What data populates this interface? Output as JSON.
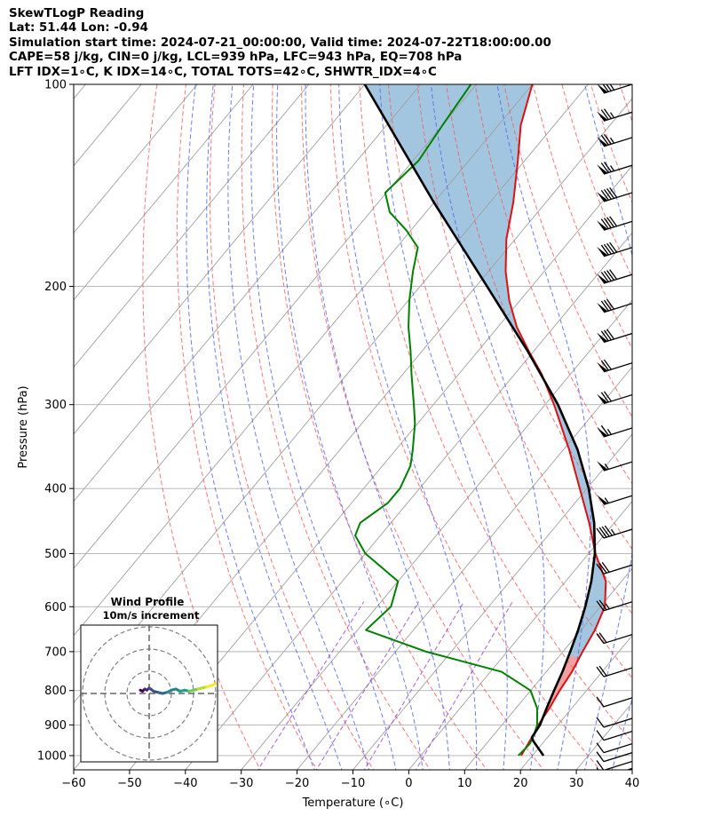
{
  "header": {
    "title": "SkewTLogP Reading",
    "location": "Lat: 51.44   Lon: -0.94",
    "times": "Simulation start time: 2024-07-21_00:00:00, Valid time: 2024-07-22T18:00:00.00",
    "indices1": "CAPE=58 j/kg, CIN=0 j/kg, LCL=939 hPa, LFC=943 hPa, EQ=708 hPa",
    "indices2": "LFT IDX=1∘C, K IDX=14∘C, TOTAL TOTS=42∘C, SHWTR_IDX=4∘C"
  },
  "chart_data": {
    "type": "line",
    "xlabel": "Temperature (∘C)",
    "ylabel": "Pressure (hPa)",
    "xlim": [
      -60,
      40
    ],
    "ylim": [
      1050,
      100
    ],
    "yscale": "log",
    "skew_deg_per_decade": 100,
    "xticks": [
      -60,
      -50,
      -40,
      -30,
      -20,
      -10,
      0,
      10,
      20,
      30,
      40
    ],
    "xtick_labels": [
      "−60",
      "−50",
      "−40",
      "−30",
      "−20",
      "−10",
      "0",
      "10",
      "20",
      "30",
      "40"
    ],
    "yticks": [
      100,
      200,
      300,
      400,
      500,
      600,
      700,
      800,
      900,
      1000
    ],
    "ytick_labels": [
      "100",
      "200",
      "300",
      "400",
      "500",
      "600",
      "700",
      "800",
      "900",
      "1000"
    ],
    "grid": true,
    "colors": {
      "temperature": "#dd1111",
      "dewpoint": "#008000",
      "parcel": "#000000",
      "cape_fill": "#a3c6e0",
      "dry_adiabats": "#f06060",
      "moist_adiabats": "#5566ee",
      "mixing_ratio": "#9944cc",
      "isotherms": "#a0a0a0"
    },
    "series": [
      {
        "key": "temperature",
        "p": [
          1000,
          925,
          900,
          850,
          800,
          750,
          700,
          650,
          600,
          550,
          500,
          450,
          400,
          350,
          300,
          270,
          250,
          230,
          210,
          190,
          170,
          150,
          130,
          115,
          100
        ],
        "t": [
          18,
          17,
          16.5,
          16,
          15.2,
          14.6,
          13.5,
          12.5,
          10.8,
          7.2,
          1.2,
          -4.5,
          -11.3,
          -19,
          -28.4,
          -35.2,
          -40.8,
          -46.6,
          -51.9,
          -56.9,
          -61.6,
          -65.8,
          -71.2,
          -76,
          -80
        ]
      },
      {
        "key": "dewpoint",
        "p": [
          1000,
          960,
          925,
          900,
          850,
          800,
          750,
          700,
          650,
          600,
          550,
          500,
          470,
          450,
          420,
          400,
          370,
          350,
          320,
          300,
          270,
          250,
          230,
          210,
          190,
          175,
          165,
          155,
          145,
          130,
          115,
          100
        ],
        "t": [
          17.5,
          17.8,
          17,
          16.3,
          13.8,
          10,
          2,
          -14.5,
          -28.5,
          -27.5,
          -30,
          -40,
          -44.5,
          -45.5,
          -43.5,
          -43.5,
          -45,
          -47,
          -50.5,
          -53.5,
          -58.5,
          -62,
          -66,
          -69.8,
          -73.5,
          -76.2,
          -80.8,
          -86.5,
          -90.2,
          -89,
          -90,
          -91
        ]
      },
      {
        "key": "parcel",
        "p": [
          1000,
          950,
          939,
          900,
          850,
          800,
          750,
          700,
          650,
          600,
          550,
          500,
          450,
          400,
          350,
          300,
          250,
          200,
          150,
          100
        ],
        "t": [
          22,
          17.9,
          17.2,
          16.8,
          15.5,
          14.2,
          12.9,
          11.3,
          9.5,
          7.3,
          4.6,
          1.1,
          -3.6,
          -9.7,
          -17.5,
          -27.7,
          -41,
          -58,
          -80,
          -110
        ]
      }
    ],
    "wind_barbs": [
      {
        "p": 100,
        "kt": 75
      },
      {
        "p": 110,
        "kt": 75
      },
      {
        "p": 120,
        "kt": 75
      },
      {
        "p": 132,
        "kt": 75
      },
      {
        "p": 145,
        "kt": 90
      },
      {
        "p": 160,
        "kt": 90
      },
      {
        "p": 175,
        "kt": 90
      },
      {
        "p": 192,
        "kt": 90
      },
      {
        "p": 212,
        "kt": 80
      },
      {
        "p": 235,
        "kt": 80
      },
      {
        "p": 260,
        "kt": 70
      },
      {
        "p": 290,
        "kt": 70
      },
      {
        "p": 325,
        "kt": 65
      },
      {
        "p": 365,
        "kt": 55
      },
      {
        "p": 410,
        "kt": 55
      },
      {
        "p": 460,
        "kt": 45
      },
      {
        "p": 520,
        "kt": 30
      },
      {
        "p": 590,
        "kt": 25
      },
      {
        "p": 660,
        "kt": 20
      },
      {
        "p": 740,
        "kt": 20
      },
      {
        "p": 820,
        "kt": 10
      },
      {
        "p": 880,
        "kt": 10
      },
      {
        "p": 920,
        "kt": 10
      },
      {
        "p": 960,
        "kt": 10
      },
      {
        "p": 990,
        "kt": 10
      },
      {
        "p": 1020,
        "kt": 10
      },
      {
        "p": 1045,
        "kt": 10
      }
    ],
    "hodograph": {
      "title": "Wind Profile",
      "subtitle": "10m/s increment",
      "ring_step_ms": 10,
      "ring_count": 3,
      "u": [
        -4,
        -3,
        -2,
        -1,
        0,
        2,
        4,
        6,
        8,
        10,
        12,
        14,
        16,
        18,
        20,
        22,
        24,
        26,
        28,
        30
      ],
      "v": [
        1.5,
        1,
        2,
        1.5,
        2.5,
        1,
        0.5,
        0,
        0.5,
        1.5,
        2,
        1,
        1.5,
        1,
        1.5,
        2,
        2.5,
        3,
        3.5,
        4.5
      ]
    }
  }
}
